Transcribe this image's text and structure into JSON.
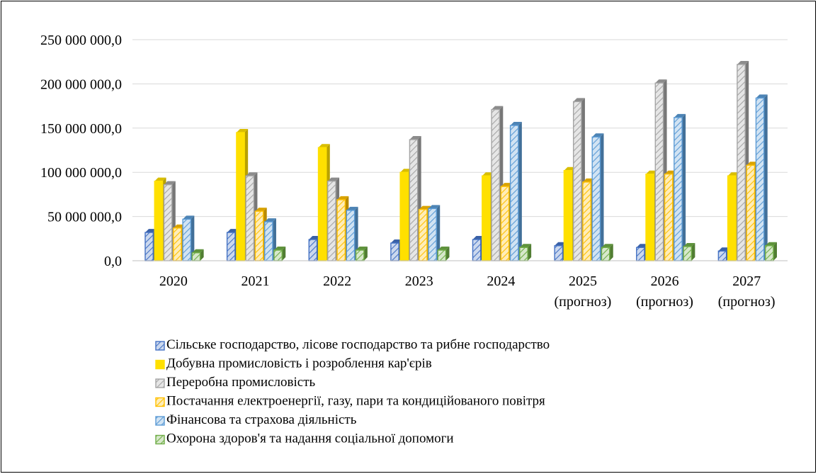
{
  "chart_data": {
    "type": "bar",
    "title": "",
    "xlabel": "",
    "ylabel": "",
    "ylim": [
      0,
      250000000
    ],
    "yticks": [
      0,
      50000000,
      100000000,
      150000000,
      200000000,
      250000000
    ],
    "ytick_labels": [
      "0,0",
      "50 000 000,0",
      "100 000 000,0",
      "150 000 000,0",
      "200 000 000,0",
      "250 000 000,0"
    ],
    "grid": true,
    "legend_position": "bottom",
    "categories": [
      [
        "2020"
      ],
      [
        "2021"
      ],
      [
        "2022"
      ],
      [
        "2023"
      ],
      [
        "2024"
      ],
      [
        "2025",
        "(прогноз)"
      ],
      [
        "2026",
        "(прогноз)"
      ],
      [
        "2027",
        "(прогноз)"
      ]
    ],
    "series": [
      {
        "name": "Сільське господарство, лісове господарство та рибне господарство",
        "color": "#4472C4",
        "pattern": "hatched",
        "values": [
          32000000,
          32000000,
          24000000,
          20000000,
          24000000,
          17000000,
          15000000,
          11000000
        ]
      },
      {
        "name": "Добувна промисловість і розроблення кар'єрів",
        "color": "#FFE000",
        "pattern": "solid",
        "values": [
          90000000,
          145000000,
          128000000,
          100000000,
          96000000,
          102000000,
          98000000,
          96000000
        ]
      },
      {
        "name": "Переробна промисловість",
        "color": "#A5A5A5",
        "pattern": "hatched",
        "values": [
          86000000,
          96000000,
          90000000,
          137000000,
          171000000,
          180000000,
          201000000,
          222000000
        ]
      },
      {
        "name": "Постачання електроенергії, газу, пари та кондиційованого повітря",
        "color": "#FFC000",
        "pattern": "hatched",
        "values": [
          37000000,
          56000000,
          69000000,
          58000000,
          84000000,
          89000000,
          98000000,
          108000000
        ]
      },
      {
        "name": "Фінансова та страхова діяльність",
        "color": "#5B9BD5",
        "pattern": "hatched",
        "values": [
          47000000,
          44000000,
          57000000,
          59000000,
          153000000,
          140000000,
          162000000,
          184000000
        ]
      },
      {
        "name": "Охорона здоров'я та надання соціальної допомоги",
        "color": "#70AD47",
        "pattern": "hatched",
        "values": [
          9000000,
          12000000,
          12000000,
          12000000,
          15000000,
          15000000,
          16000000,
          17000000
        ]
      }
    ]
  }
}
